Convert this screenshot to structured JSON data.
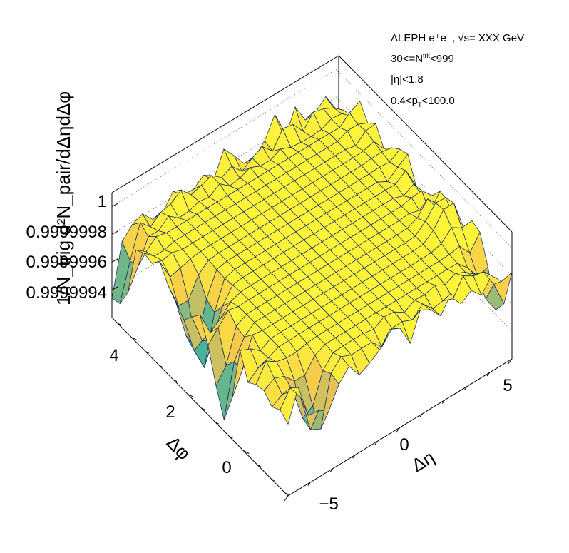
{
  "annotations": {
    "line1": "ALEPH e⁺e⁻, √s= XXX GeV",
    "line2_prefix": "30<=N",
    "line2_sup": "trk",
    "line2_suffix": "<999",
    "line3": "|η|<1.8",
    "line4_prefix": "0.4<p",
    "line4_sub": "T",
    "line4_suffix": "<100.0"
  },
  "colors": {
    "surface_top": "#fdf43a",
    "surface_mid": "#f6c44d",
    "surface_low": "#37b0a0",
    "surface_min": "#1f6fd0",
    "mesh": "#0a1f6a",
    "frame": "#000000"
  },
  "chart_data": {
    "type": "surface",
    "title": "",
    "zlabel": "1/N_trig d²N_pair/dΔηdΔφ",
    "x_axis": {
      "label": "Δη",
      "ticks": [
        "−5",
        "0",
        "5"
      ],
      "range": [
        -5,
        5
      ]
    },
    "y_axis": {
      "label": "Δφ",
      "ticks": [
        "0",
        "2",
        "4"
      ],
      "range": [
        -1.6,
        4.7
      ]
    },
    "z_axis": {
      "ticks": [
        "1",
        "0.9999998",
        "0.9999996",
        "0.9999994"
      ],
      "range": [
        0.9999992,
        1.0000001
      ]
    },
    "grid": "dotted on back walls",
    "plateau_value": 0.99999985,
    "features": [
      {
        "dEta": -5,
        "dPhi": 4.5,
        "dip_to": 0.9999993
      },
      {
        "dEta": -4.2,
        "dPhi": 2.2,
        "dip_to": 0.9999992
      },
      {
        "dEta": -5,
        "dPhi": 0.8,
        "dip_to": 0.9999993
      },
      {
        "dEta": -3.4,
        "dPhi": -1.2,
        "dip_to": 0.9999994
      },
      {
        "dEta": 4.8,
        "dPhi": -1.0,
        "dip_to": 0.9999995
      },
      {
        "dEta": 4.2,
        "dPhi": 0.3,
        "peak_to": 1.00000005
      }
    ]
  }
}
